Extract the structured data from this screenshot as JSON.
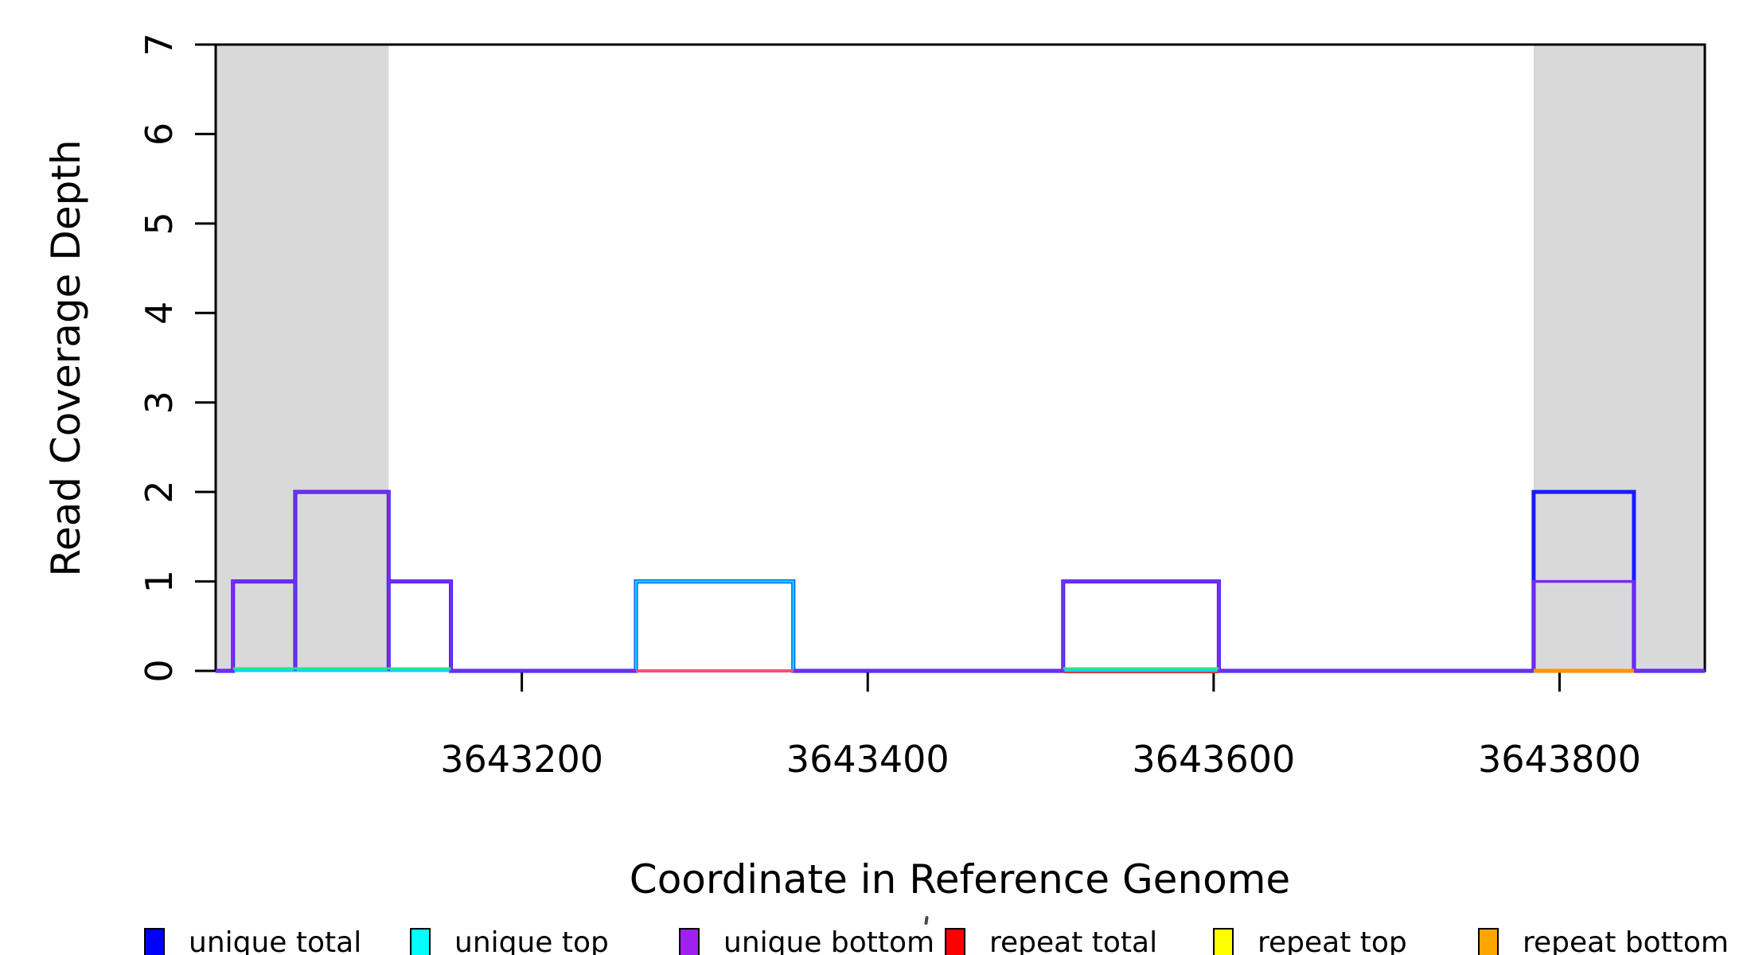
{
  "figure": {
    "background": "#FFFFFF",
    "plot_border_color": "#000000"
  },
  "chart_data": {
    "type": "line",
    "subtype": "step-coverage",
    "title": "",
    "xlabel": "Coordinate in Reference Genome",
    "ylabel": "Read Coverage Depth",
    "xlim": [
      3643023,
      3643884
    ],
    "ylim": [
      0,
      7
    ],
    "x_ticks": [
      3643200,
      3643400,
      3643600,
      3643800
    ],
    "x_tick_labels": [
      "3643200",
      "3643400",
      "3643600",
      "3643800"
    ],
    "y_ticks": [
      0,
      1,
      2,
      3,
      4,
      5,
      6,
      7
    ],
    "y_tick_labels": [
      "0",
      "1",
      "2",
      "3",
      "4",
      "5",
      "6",
      "7"
    ],
    "grid": false,
    "legend_position": "bottom",
    "shaded_color": "#D9D9D9",
    "shaded_regions": [
      {
        "from": 3643023,
        "to": 3643123
      },
      {
        "from": 3643785,
        "to": 3643884
      }
    ],
    "series": [
      {
        "name": "unique total",
        "color": "#1A1AFF",
        "line_width": 5,
        "segments": [
          {
            "from": 3643033,
            "to": 3643069,
            "depth": 1
          },
          {
            "from": 3643069,
            "to": 3643123,
            "depth": 2
          },
          {
            "from": 3643123,
            "to": 3643159,
            "depth": 1
          },
          {
            "from": 3643266,
            "to": 3643357,
            "depth": 1
          },
          {
            "from": 3643513,
            "to": 3643603,
            "depth": 1
          },
          {
            "from": 3643785,
            "to": 3643843,
            "depth": 2
          }
        ]
      },
      {
        "name": "unique top",
        "color": "#00D8FF",
        "line_width": 3,
        "segments": [
          {
            "from": 3643266,
            "to": 3643357,
            "depth": 1
          }
        ]
      },
      {
        "name": "unique bottom",
        "color": "#7D2BE8",
        "line_width": 3.5,
        "segments": [
          {
            "from": 3643033,
            "to": 3643069,
            "depth": 1
          },
          {
            "from": 3643069,
            "to": 3643123,
            "depth": 2
          },
          {
            "from": 3643123,
            "to": 3643159,
            "depth": 1
          },
          {
            "from": 3643513,
            "to": 3643603,
            "depth": 1
          },
          {
            "from": 3643785,
            "to": 3643843,
            "depth": 1
          }
        ]
      },
      {
        "name": "repeat total",
        "color": "#FF0000",
        "line_width": 3,
        "segments": []
      },
      {
        "name": "repeat top",
        "color": "#FFFF00",
        "line_width": 3,
        "segments": []
      },
      {
        "name": "repeat bottom",
        "color": "#FFA500",
        "line_width": 3,
        "segments": []
      }
    ],
    "baseline_accents": [
      {
        "color": "#2EE08C",
        "from": 3643033,
        "to": 3643159,
        "dy": -3,
        "width": 3
      },
      {
        "color": "#F0507A",
        "from": 3643266,
        "to": 3643357,
        "dy": 0,
        "width": 4
      },
      {
        "color": "#2EE08C",
        "from": 3643513,
        "to": 3643603,
        "dy": -3,
        "width": 3
      },
      {
        "color": "#D93A3A",
        "from": 3643513,
        "to": 3643603,
        "dy": 2,
        "width": 2
      },
      {
        "color": "#FF9500",
        "from": 3643785,
        "to": 3643843,
        "dy": 0,
        "width": 5
      }
    ]
  },
  "legend": {
    "items": [
      {
        "label": "unique total",
        "color": "#0000FF"
      },
      {
        "label": "unique top",
        "color": "#00FFFF"
      },
      {
        "label": "unique bottom",
        "color": "#A020F0"
      },
      {
        "label": "repeat total",
        "color": "#FF0000"
      },
      {
        "label": "repeat top",
        "color": "#FFFF00"
      },
      {
        "label": "repeat bottom",
        "color": "#FFA500"
      }
    ]
  }
}
